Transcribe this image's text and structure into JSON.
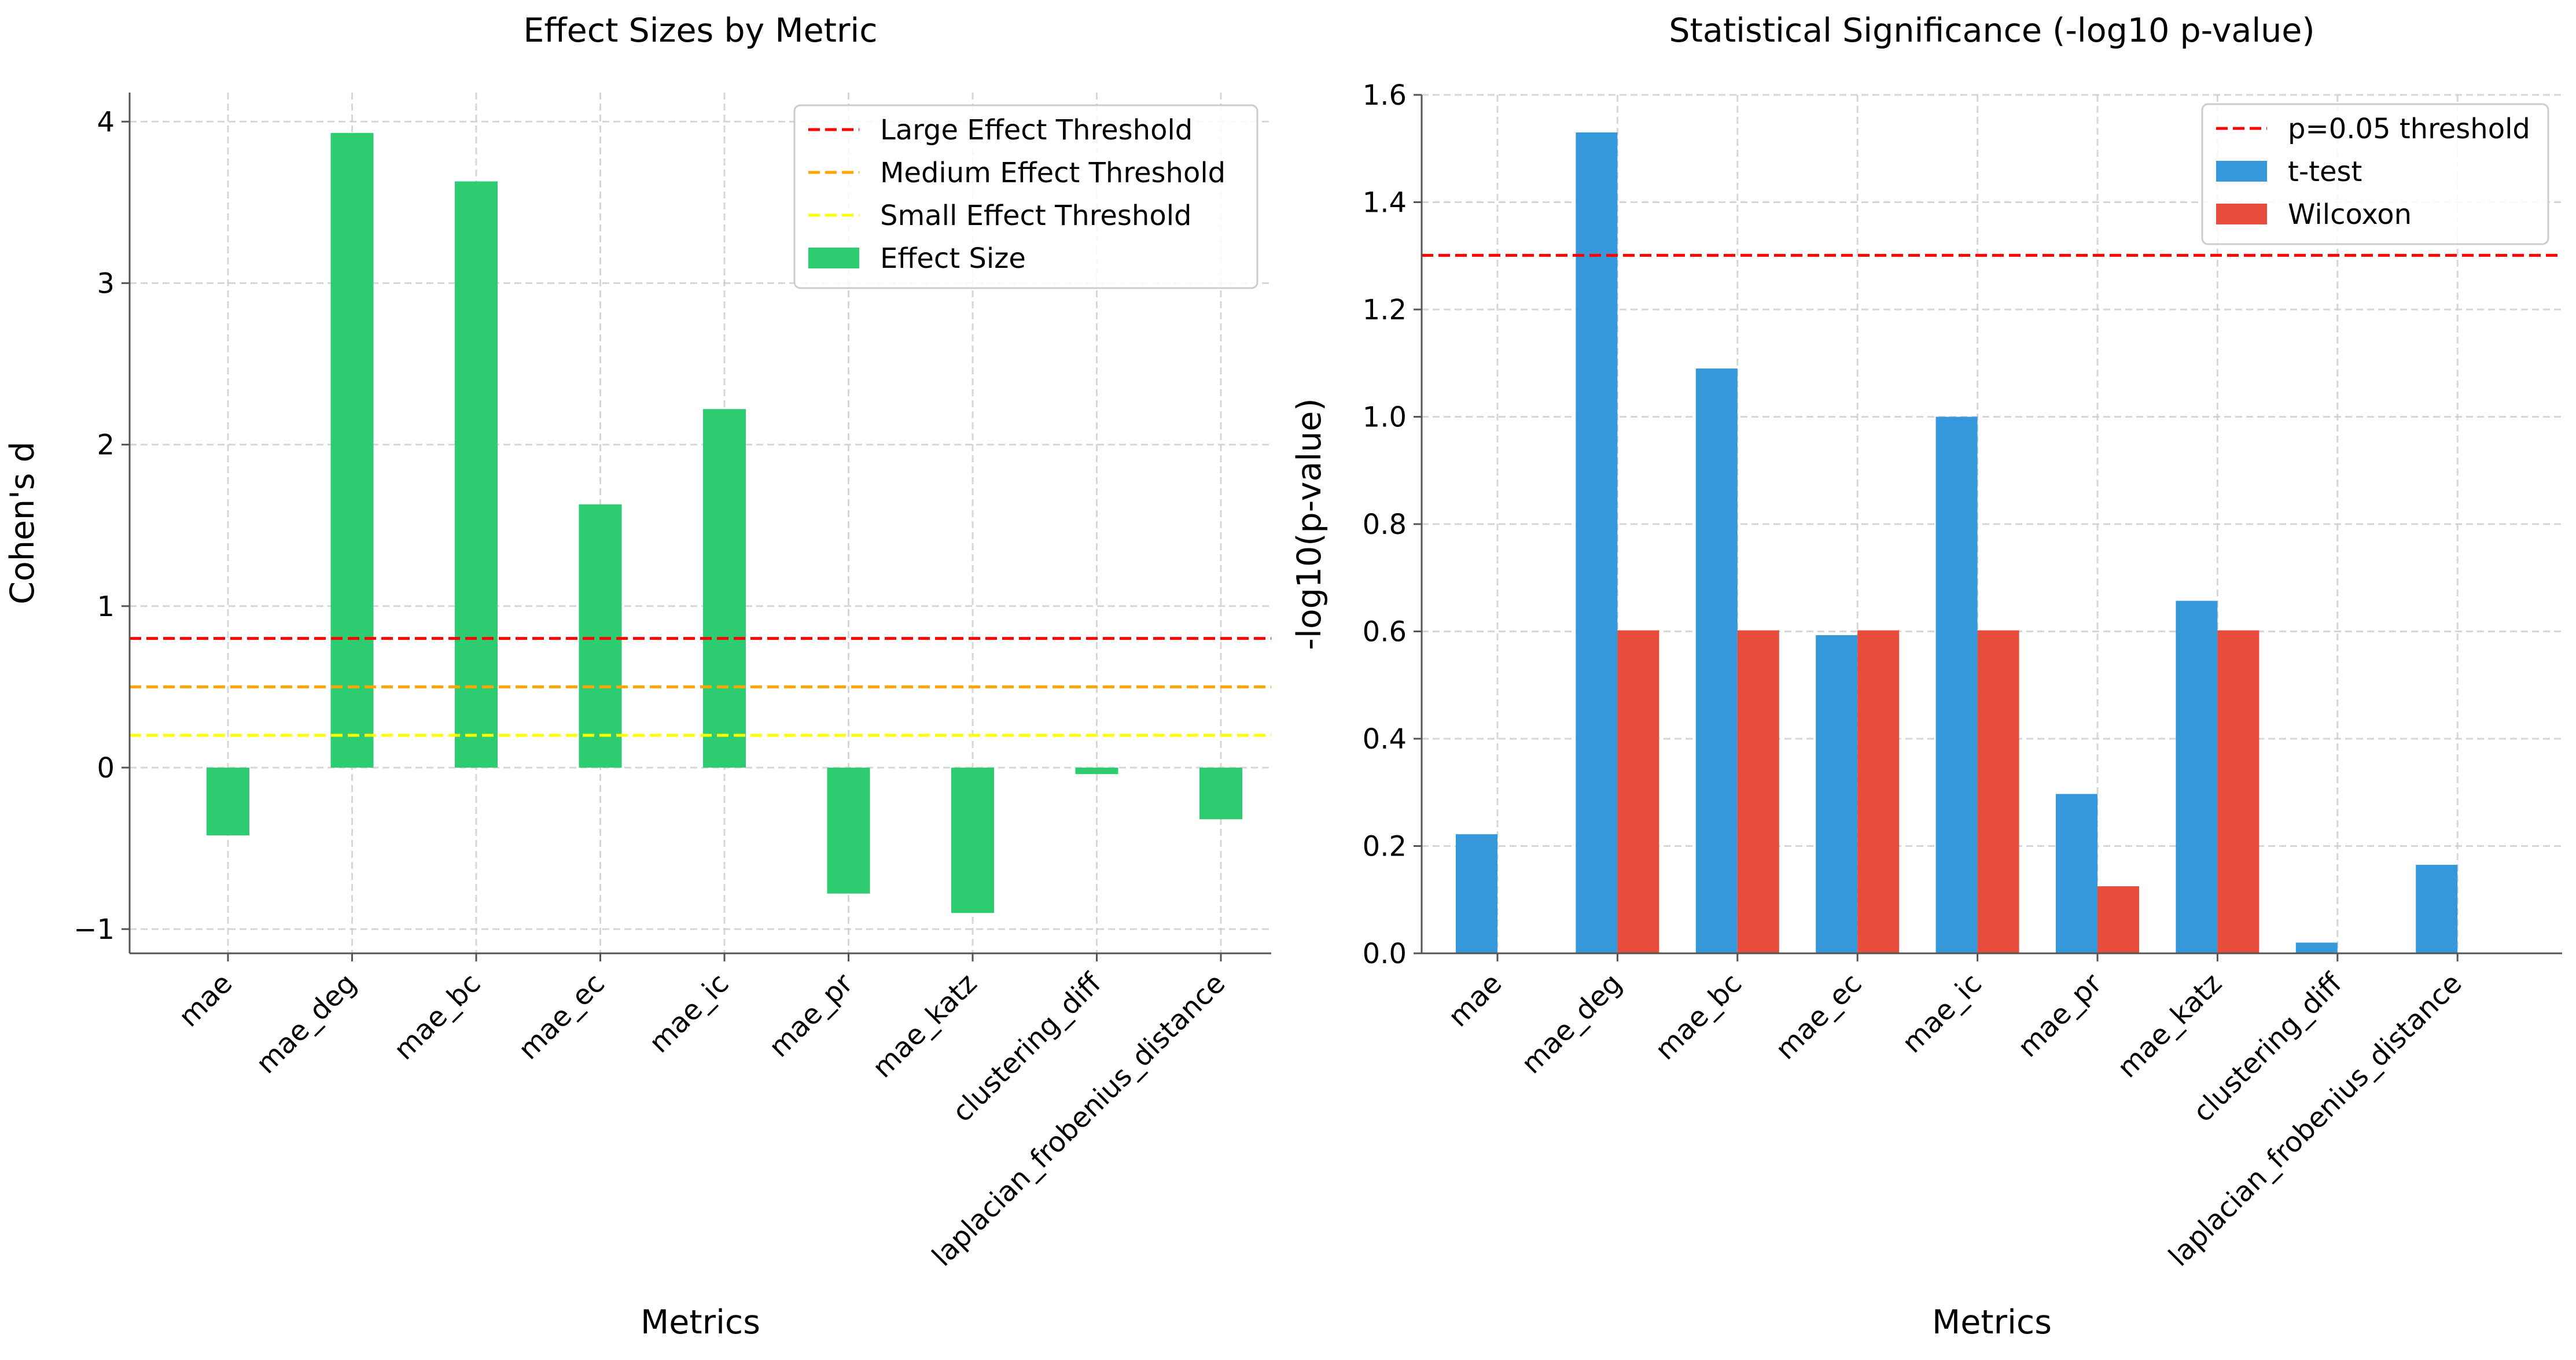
{
  "chart_data": [
    {
      "type": "bar",
      "title": "Effect Sizes by Metric",
      "xlabel": "Metrics",
      "ylabel": "Cohen's d",
      "categories": [
        "mae",
        "mae_deg",
        "mae_bc",
        "mae_ec",
        "mae_ic",
        "mae_pr",
        "mae_katz",
        "clustering_diff",
        "laplacian_frobenius_distance"
      ],
      "ylim": [
        -1.15,
        4.18
      ],
      "yticks": [
        -1,
        0,
        1,
        2,
        3,
        4
      ],
      "yticklabels": [
        "−1",
        "0",
        "1",
        "2",
        "3",
        "4"
      ],
      "grid": true,
      "legend_position": "top-right",
      "series": [
        {
          "name": "Effect Size",
          "color": "#2ecc71",
          "values": [
            -0.42,
            3.93,
            3.63,
            1.63,
            2.22,
            -0.78,
            -0.9,
            -0.04,
            -0.32
          ]
        }
      ],
      "reference_lines": [
        {
          "name": "Large Effect Threshold",
          "y": 0.8,
          "color": "#ff0000"
        },
        {
          "name": "Medium Effect Threshold",
          "y": 0.5,
          "color": "#ffa500"
        },
        {
          "name": "Small Effect Threshold",
          "y": 0.2,
          "color": "#ffff00"
        }
      ]
    },
    {
      "type": "bar",
      "title": "Statistical Significance (-log10 p-value)",
      "xlabel": "Metrics",
      "ylabel": "-log10(p-value)",
      "categories": [
        "mae",
        "mae_deg",
        "mae_bc",
        "mae_ec",
        "mae_ic",
        "mae_pr",
        "mae_katz",
        "clustering_diff",
        "laplacian_frobenius_distance"
      ],
      "ylim": [
        0,
        1.6
      ],
      "yticks": [
        0,
        0.2,
        0.4,
        0.6,
        0.8,
        1.0,
        1.2,
        1.4,
        1.6
      ],
      "yticklabels": [
        "0.0",
        "0.2",
        "0.4",
        "0.6",
        "0.8",
        "1.0",
        "1.2",
        "1.4",
        "1.6"
      ],
      "grid": true,
      "legend_position": "top-right",
      "series": [
        {
          "name": "t-test",
          "color": "#3498db",
          "values": [
            0.222,
            1.53,
            1.09,
            0.593,
            1.0,
            0.297,
            0.657,
            0.02,
            0.165
          ]
        },
        {
          "name": "Wilcoxon",
          "color": "#e74c3c",
          "values": [
            0,
            0.602,
            0.602,
            0.602,
            0.602,
            0.125,
            0.602,
            0,
            0
          ]
        }
      ],
      "reference_lines": [
        {
          "name": "p=0.05 threshold",
          "y": 1.301,
          "color": "#ff0000"
        }
      ]
    }
  ]
}
